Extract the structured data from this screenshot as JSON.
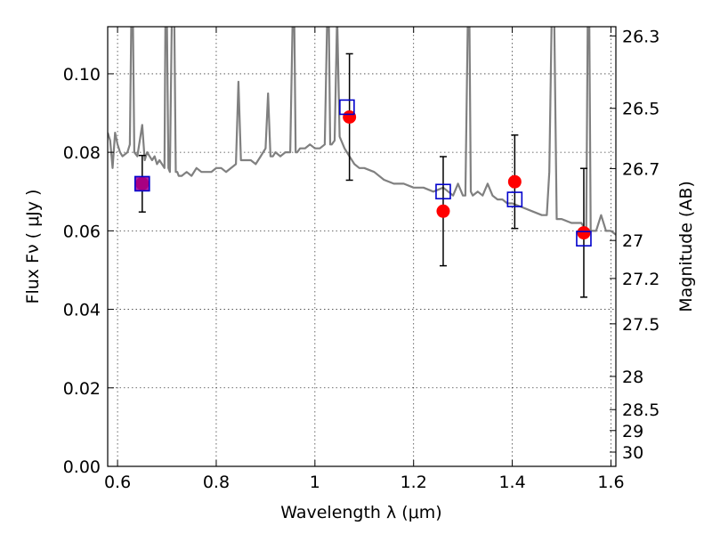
{
  "chart_data": {
    "type": "scatter",
    "title": "",
    "xlabel": "Wavelength  λ (μm)",
    "ylabel": "Flux  Fν  ( μJy )",
    "ylabel_right": "Magnitude (AB)",
    "xlim": [
      0.58,
      1.61
    ],
    "ylim": [
      0.0,
      0.112
    ],
    "grid": true,
    "x_ticks": [
      "0.6",
      "0.8",
      "1",
      "1.2",
      "1.4",
      "1.6"
    ],
    "y_ticks": [
      "0.00",
      "0.02",
      "0.04",
      "0.06",
      "0.08",
      "0.10"
    ],
    "mag_ticks": [
      "26.3",
      "26.5",
      "26.7",
      "27",
      "27.2",
      "27.5",
      "28",
      "28.5",
      "29",
      "30"
    ],
    "colors": {
      "spectrum": "#808080",
      "observed": "#ff0000",
      "model": "#0000cc",
      "overlap": "#990099"
    },
    "series": [
      {
        "type": "line",
        "x": [
          0.58,
          0.585,
          0.59,
          0.595,
          0.6,
          0.605,
          0.61,
          0.62,
          0.625,
          0.628,
          0.631,
          0.634,
          0.64,
          0.65,
          0.655,
          0.66,
          0.665,
          0.67,
          0.675,
          0.68,
          0.685,
          0.69,
          0.695,
          0.697,
          0.7,
          0.703,
          0.706,
          0.71,
          0.715,
          0.718,
          0.721,
          0.724,
          0.73,
          0.74,
          0.75,
          0.76,
          0.77,
          0.78,
          0.79,
          0.8,
          0.81,
          0.82,
          0.83,
          0.84,
          0.845,
          0.85,
          0.86,
          0.87,
          0.88,
          0.89,
          0.9,
          0.905,
          0.91,
          0.915,
          0.92,
          0.93,
          0.94,
          0.95,
          0.955,
          0.958,
          0.961,
          0.964,
          0.97,
          0.98,
          0.99,
          1.0,
          1.01,
          1.02,
          1.025,
          1.028,
          1.031,
          1.034,
          1.04,
          1.045,
          1.05,
          1.06,
          1.07,
          1.08,
          1.09,
          1.1,
          1.12,
          1.14,
          1.16,
          1.18,
          1.2,
          1.22,
          1.24,
          1.26,
          1.28,
          1.29,
          1.3,
          1.305,
          1.31,
          1.313,
          1.316,
          1.32,
          1.33,
          1.34,
          1.35,
          1.36,
          1.37,
          1.38,
          1.39,
          1.4,
          1.42,
          1.44,
          1.46,
          1.47,
          1.475,
          1.48,
          1.485,
          1.49,
          1.5,
          1.52,
          1.54,
          1.55,
          1.553,
          1.556,
          1.559,
          1.562,
          1.57,
          1.58,
          1.59,
          1.6,
          1.61
        ],
        "y": [
          0.085,
          0.083,
          0.076,
          0.085,
          0.082,
          0.08,
          0.079,
          0.08,
          0.082,
          0.115,
          0.115,
          0.08,
          0.079,
          0.087,
          0.078,
          0.08,
          0.079,
          0.078,
          0.079,
          0.077,
          0.078,
          0.077,
          0.076,
          0.115,
          0.115,
          0.076,
          0.075,
          0.115,
          0.115,
          0.075,
          0.075,
          0.074,
          0.074,
          0.075,
          0.074,
          0.076,
          0.075,
          0.075,
          0.075,
          0.076,
          0.076,
          0.075,
          0.076,
          0.077,
          0.098,
          0.078,
          0.078,
          0.078,
          0.077,
          0.079,
          0.081,
          0.095,
          0.079,
          0.079,
          0.08,
          0.079,
          0.08,
          0.08,
          0.115,
          0.115,
          0.08,
          0.08,
          0.081,
          0.081,
          0.082,
          0.081,
          0.081,
          0.082,
          0.115,
          0.115,
          0.082,
          0.082,
          0.083,
          0.115,
          0.084,
          0.081,
          0.079,
          0.077,
          0.076,
          0.076,
          0.075,
          0.073,
          0.072,
          0.072,
          0.071,
          0.071,
          0.07,
          0.071,
          0.069,
          0.072,
          0.069,
          0.069,
          0.115,
          0.115,
          0.07,
          0.069,
          0.07,
          0.069,
          0.072,
          0.069,
          0.068,
          0.068,
          0.067,
          0.067,
          0.066,
          0.065,
          0.064,
          0.064,
          0.075,
          0.115,
          0.115,
          0.063,
          0.063,
          0.062,
          0.062,
          0.06,
          0.115,
          0.115,
          0.06,
          0.06,
          0.06,
          0.064,
          0.06,
          0.06,
          0.059
        ]
      },
      {
        "type": "errorbar-scatter",
        "x": [
          0.65,
          1.07,
          1.26,
          1.405,
          1.545
        ],
        "y": [
          0.072,
          0.089,
          0.065,
          0.0725,
          0.0595
        ],
        "yerr": [
          0.0072,
          0.0161,
          0.0139,
          0.0119,
          0.0164
        ]
      },
      {
        "type": "scatter",
        "marker": "square",
        "x": [
          0.65,
          1.065,
          1.26,
          1.405,
          1.545
        ],
        "y": [
          0.072,
          0.0915,
          0.07,
          0.068,
          0.058
        ]
      }
    ]
  }
}
